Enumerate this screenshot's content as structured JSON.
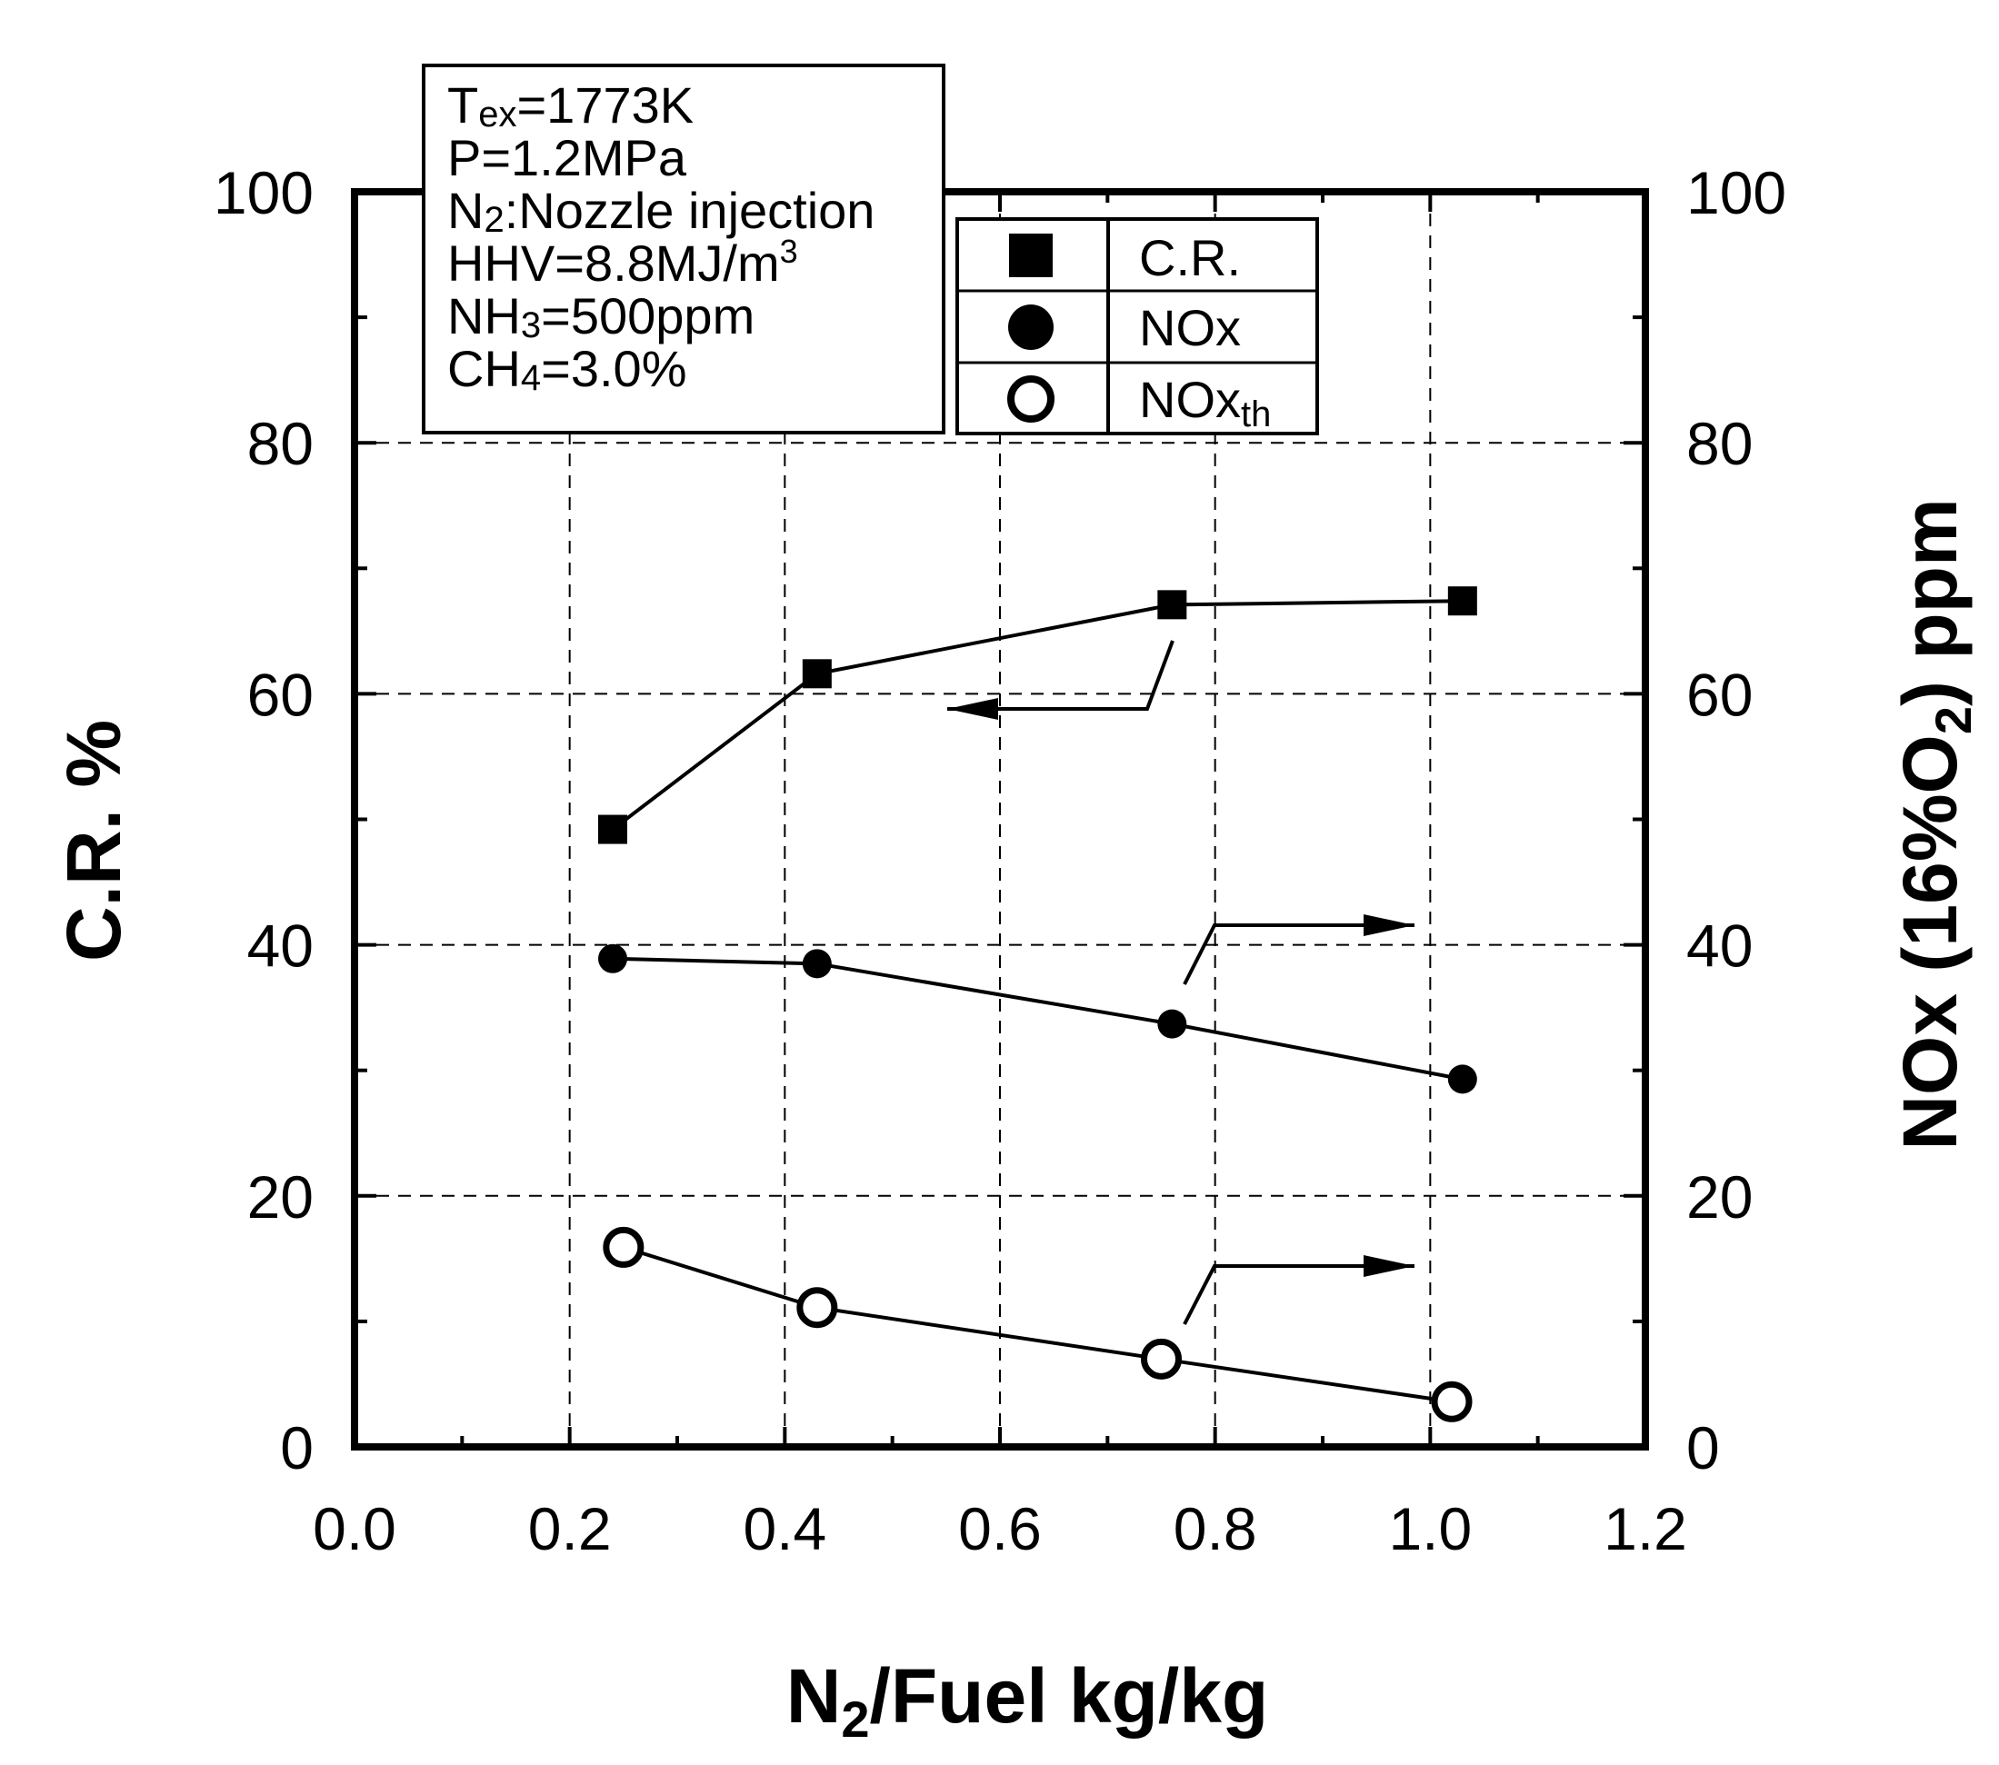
{
  "chart_data": {
    "type": "line",
    "title": "",
    "xlabel": {
      "base": "N",
      "sub": "2",
      "rest": "/Fuel kg/kg"
    },
    "ylabel_left": "C.R. %",
    "ylabel_right": {
      "pre": "NOx (16%O",
      "sub": "2",
      "post": ") ppm"
    },
    "xlim": [
      0.0,
      1.2
    ],
    "ylim_left": [
      0,
      100
    ],
    "ylim_right": [
      0,
      100
    ],
    "x_ticks": [
      "0.0",
      "0.2",
      "0.4",
      "0.6",
      "0.8",
      "1.0",
      "1.2"
    ],
    "y_ticks": [
      "0",
      "20",
      "40",
      "60",
      "80",
      "100"
    ],
    "grid": true,
    "legend_position": "top-center",
    "series": [
      {
        "name": "C.R.",
        "marker": "filled-square",
        "axis": "left",
        "x": [
          0.24,
          0.43,
          0.76,
          1.03
        ],
        "y": [
          49.2,
          61.6,
          67.1,
          67.4
        ]
      },
      {
        "name": "NOx",
        "marker": "filled-circle",
        "axis": "right",
        "x": [
          0.24,
          0.43,
          0.76,
          1.03
        ],
        "y": [
          38.9,
          38.5,
          33.7,
          29.3
        ]
      },
      {
        "name": "NOxth",
        "name_base": "NOx",
        "name_sub": "th",
        "marker": "open-circle",
        "axis": "right",
        "x": [
          0.25,
          0.43,
          0.75,
          1.02
        ],
        "y": [
          15.9,
          11.1,
          7.0,
          3.6
        ]
      }
    ],
    "annotations": [
      {
        "lines": [
          {
            "base": "T",
            "sub": "ex",
            "rest": "=1773K"
          },
          {
            "base": "P=1.2MPa",
            "sub": "",
            "rest": ""
          },
          {
            "base": "N",
            "sub": "2",
            "rest": ":Nozzle injection"
          },
          {
            "base": "HHV=8.8MJ/m",
            "sup": "3",
            "rest": ""
          },
          {
            "base": "NH",
            "sub": "3",
            "rest": "=500ppm"
          },
          {
            "base": "CH",
            "sub": "4",
            "rest": "=3.0%"
          }
        ]
      }
    ],
    "arrows": [
      {
        "series": "C.R.",
        "direction": "left"
      },
      {
        "series": "NOx",
        "direction": "right"
      },
      {
        "series": "NOxth",
        "direction": "right"
      }
    ]
  }
}
